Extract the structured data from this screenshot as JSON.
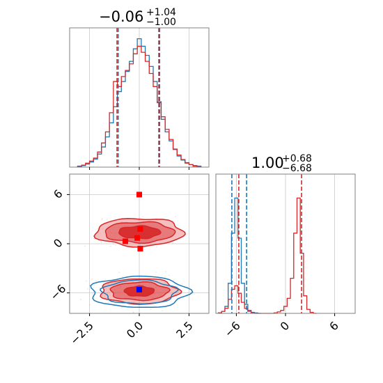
{
  "colors": {
    "blue": "#1f77b4",
    "red": "#d62728",
    "red_fill_dark": "#d62728",
    "red_fill_light": "#ec8a8a",
    "blue_marker": "#0000ff",
    "red_marker": "#ff0000",
    "grid": "#c8c8c8",
    "frame": "#808080"
  },
  "titles": {
    "p1_main": "−0.06",
    "p1_sup": "+1.04",
    "p1_sub": "−1.00",
    "p2_main": "1.00",
    "p2_sup": "+0.68",
    "p2_sub": "−6.68"
  },
  "chart_data": [
    {
      "panel": "marginal-param1",
      "type": "line",
      "subtype": "step-histogram",
      "xlim": [
        -3.5,
        3.5
      ],
      "grid": true,
      "series": [
        {
          "color": "#1f77b4",
          "x": [
            -3.0,
            -2.8,
            -2.6,
            -2.4,
            -2.2,
            -2.0,
            -1.8,
            -1.6,
            -1.4,
            -1.2,
            -1.0,
            -0.8,
            -0.6,
            -0.4,
            -0.2,
            0.0,
            0.2,
            0.4,
            0.6,
            0.8,
            1.0,
            1.2,
            1.4,
            1.6,
            1.8,
            2.0,
            2.2,
            2.4,
            2.6,
            2.8,
            3.0
          ],
          "y": [
            2,
            3,
            6,
            10,
            16,
            26,
            40,
            60,
            88,
            120,
            150,
            170,
            190,
            210,
            235,
            255,
            240,
            222,
            200,
            170,
            130,
            95,
            70,
            52,
            35,
            22,
            14,
            9,
            5,
            3,
            2
          ]
        },
        {
          "color": "#d62728",
          "x": [
            -3.0,
            -2.8,
            -2.6,
            -2.4,
            -2.2,
            -2.0,
            -1.8,
            -1.6,
            -1.4,
            -1.2,
            -1.0,
            -0.8,
            -0.6,
            -0.4,
            -0.2,
            0.0,
            0.2,
            0.4,
            0.6,
            0.8,
            1.0,
            1.2,
            1.4,
            1.6,
            1.8,
            2.0,
            2.2,
            2.4,
            2.6,
            2.8,
            3.0
          ],
          "y": [
            1,
            4,
            8,
            12,
            18,
            30,
            48,
            70,
            108,
            170,
            160,
            180,
            192,
            205,
            225,
            240,
            228,
            210,
            186,
            160,
            128,
            100,
            75,
            55,
            36,
            24,
            15,
            8,
            5,
            2,
            1
          ]
        }
      ],
      "vlines": [
        {
          "color": "#1f77b4",
          "x": [
            -1.06,
            0.98
          ]
        },
        {
          "color": "#d62728",
          "x": [
            -1.12,
            1.02
          ]
        }
      ]
    },
    {
      "panel": "marginal-param2",
      "type": "line",
      "subtype": "step-histogram",
      "xlim": [
        -8.5,
        8.5
      ],
      "xticks": [
        -6,
        0,
        6
      ],
      "xticklabels": [
        "−6",
        "0",
        "6"
      ],
      "grid": true,
      "series": [
        {
          "color": "#1f77b4",
          "x": [
            -8.0,
            -7.6,
            -7.2,
            -6.8,
            -6.4,
            -6.0,
            -5.6,
            -5.2,
            -4.8,
            -4.4,
            -4.0,
            -3.6,
            -3.2
          ],
          "y": [
            1,
            4,
            14,
            60,
            160,
            230,
            150,
            60,
            18,
            6,
            2,
            1,
            0
          ]
        },
        {
          "color": "#d62728",
          "x": [
            -8.0,
            -7.6,
            -7.2,
            -6.8,
            -6.4,
            -6.0,
            -5.6,
            -5.2,
            -4.8,
            -4.4,
            -4.0,
            -3.6,
            -3.2,
            -2.8,
            -2.4,
            -2.0,
            -1.6,
            -1.2,
            -0.8,
            -0.4,
            0.0,
            0.4,
            0.8,
            1.2,
            1.6,
            2.0,
            2.4,
            2.8,
            3.2,
            3.6
          ],
          "y": [
            1,
            4,
            10,
            28,
            48,
            55,
            40,
            22,
            10,
            4,
            1,
            0,
            0,
            0,
            0,
            0,
            0,
            1,
            3,
            6,
            14,
            30,
            70,
            160,
            230,
            120,
            35,
            8,
            2,
            0
          ]
        }
      ],
      "vlines": [
        {
          "color": "#1f77b4",
          "x": [
            -6.55,
            -4.75
          ]
        },
        {
          "color": "#d62728",
          "x": [
            -5.7,
            1.96
          ]
        }
      ]
    },
    {
      "panel": "joint-param1-param2",
      "type": "scatter",
      "subtype": "2d-density-contour",
      "xlim": [
        -3.5,
        3.5
      ],
      "ylim": [
        -8.5,
        8.5
      ],
      "xticks": [
        -2.5,
        0.0,
        2.5
      ],
      "xticklabels": [
        "−2.5",
        "0.0",
        "2.5"
      ],
      "yticks": [
        6,
        0,
        -6
      ],
      "yticklabels": [
        "6",
        "0",
        "−6"
      ],
      "grid": true,
      "clusters": [
        {
          "color": "#d62728",
          "cx": 0.0,
          "cy": 1.4,
          "levels_rx": [
            2.2,
            1.75,
            1.05
          ],
          "levels_ry": [
            1.7,
            1.25,
            0.75
          ]
        },
        {
          "color": "#d62728",
          "cx": 0.0,
          "cy": -5.8,
          "levels_rx": [
            1.95,
            1.45,
            0.75
          ],
          "levels_ry": [
            1.55,
            1.1,
            0.6
          ]
        },
        {
          "color": "#1f77b4",
          "cx": 0.0,
          "cy": -5.9,
          "levels_rx": [
            2.45,
            1.85
          ],
          "levels_ry": [
            1.9,
            1.45
          ]
        }
      ],
      "markers": [
        {
          "color": "#ff0000",
          "x": 0.0,
          "y": 6.0
        },
        {
          "color": "#ff0000",
          "x": 0.05,
          "y": 1.8
        },
        {
          "color": "#ff0000",
          "x": -0.1,
          "y": 0.7
        },
        {
          "color": "#ff0000",
          "x": -0.7,
          "y": 0.3
        },
        {
          "color": "#ff0000",
          "x": 0.05,
          "y": -0.6
        },
        {
          "color": "#0000ff",
          "x": 0.0,
          "y": -5.6
        }
      ]
    }
  ]
}
